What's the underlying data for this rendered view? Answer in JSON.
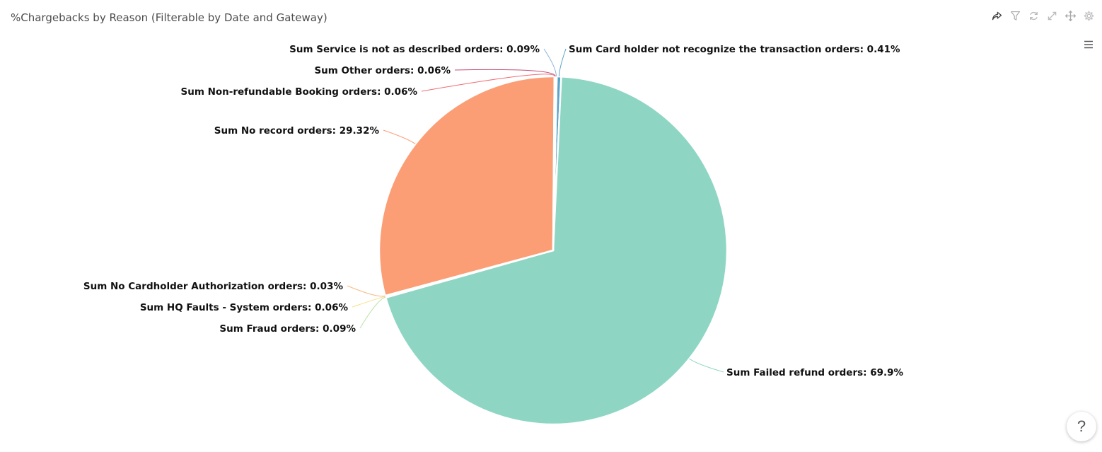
{
  "panel": {
    "title": "%Chargebacks by Reason (Filterable by Date and Gateway)",
    "toolbar_icons": [
      "share-icon",
      "filter-icon",
      "refresh-icon",
      "expand-icon",
      "move-icon",
      "settings-icon"
    ],
    "menu_icon": "hamburger-menu-icon",
    "help_label": "?"
  },
  "chart_data": {
    "type": "pie",
    "title": "%Chargebacks by Reason (Filterable by Date and Gateway)",
    "slices": [
      {
        "label": "Sum Card holder not recognize the transaction orders: 0.41%",
        "value": 0.41,
        "color": "#5aa3c9"
      },
      {
        "label": "Sum Failed refund orders: 69.9%",
        "value": 69.9,
        "color": "#8ed6c3"
      },
      {
        "label": "Sum Fraud orders: 0.09%",
        "value": 0.09,
        "color": "#b9e3a8"
      },
      {
        "label": "Sum HQ Faults - System orders: 0.06%",
        "value": 0.06,
        "color": "#f7e08a"
      },
      {
        "label": "Sum No Cardholder Authorization orders: 0.03%",
        "value": 0.03,
        "color": "#f9b97e"
      },
      {
        "label": "Sum No record orders: 29.32%",
        "value": 29.32,
        "color": "#fb9e76"
      },
      {
        "label": "Sum Non-refundable Booking orders: 0.06%",
        "value": 0.06,
        "color": "#f06c73"
      },
      {
        "label": "Sum Other orders: 0.06%",
        "value": 0.06,
        "color": "#c44e78"
      },
      {
        "label": "Sum Service is not as described orders: 0.09%",
        "value": 0.09,
        "color": "#8db4d6"
      }
    ],
    "legend": "none"
  }
}
